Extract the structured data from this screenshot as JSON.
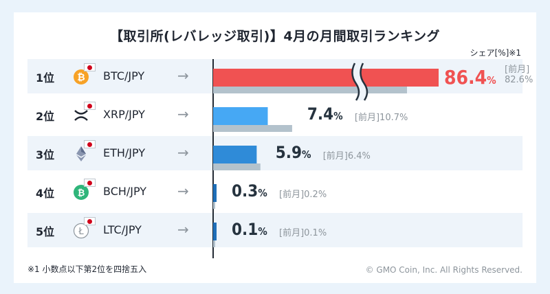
{
  "title": "【取引所(レバレッジ取引)】4月の月間取引ランキング",
  "unit_label": "シェア[%]※1",
  "footnote": "※1 小数点以下第2位を四捨五入",
  "copyright": "© GMO Coin, Inc. All Rights Reserved.",
  "prev_label": "[前月]",
  "colors": {
    "top": "#f05252",
    "light": "#46a8f4",
    "mid": "#2f8bd8",
    "dark": "#1f6fb8",
    "prev": "#b3c2cc"
  },
  "chart_data": {
    "type": "bar",
    "orientation": "horizontal",
    "categories": [
      "BTC/JPY",
      "XRP/JPY",
      "ETH/JPY",
      "BCH/JPY",
      "LTC/JPY"
    ],
    "ranks": [
      "1位",
      "2位",
      "3位",
      "4位",
      "5位"
    ],
    "coin_icons": [
      "bitcoin-icon",
      "ripple-icon",
      "ethereum-icon",
      "bitcoin-cash-icon",
      "litecoin-icon"
    ],
    "series": [
      {
        "name": "",
        "values": [
          86.4,
          7.4,
          5.9,
          0.3,
          0.1
        ]
      },
      {
        "name": "[前月]",
        "values": [
          82.6,
          10.7,
          6.4,
          0.2,
          0.1
        ]
      }
    ],
    "value_labels": [
      "86.4",
      "7.4",
      "5.9",
      "0.3",
      "0.1"
    ],
    "prev_labels": [
      "82.6%",
      "10.7%",
      "6.4%",
      "0.2%",
      "0.1%"
    ],
    "axis_break": "first-bar"
  }
}
